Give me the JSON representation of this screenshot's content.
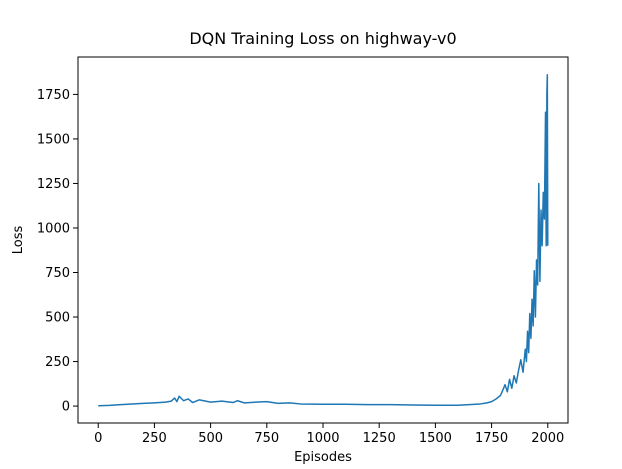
{
  "chart_data": {
    "type": "line",
    "title": "DQN Training Loss on highway-v0",
    "xlabel": "Episodes",
    "ylabel": "Loss",
    "xlim": [
      -90,
      2090
    ],
    "ylim": [
      -95,
      1960
    ],
    "xticks": [
      0,
      250,
      500,
      750,
      1000,
      1250,
      1500,
      1750,
      2000
    ],
    "yticks": [
      0,
      250,
      500,
      750,
      1000,
      1250,
      1500,
      1750
    ],
    "grid": false,
    "legend": "none",
    "line_color": "#1f77b4",
    "series": [
      {
        "x": [
          0,
          50,
          100,
          150,
          200,
          250,
          300,
          325,
          340,
          350,
          360,
          380,
          400,
          420,
          450,
          500,
          550,
          600,
          620,
          650,
          700,
          750,
          800,
          850,
          900,
          1000,
          1100,
          1200,
          1300,
          1400,
          1500,
          1600,
          1650,
          1700,
          1730,
          1750,
          1770,
          1790,
          1800,
          1810,
          1820,
          1830,
          1840,
          1850,
          1860,
          1870,
          1880,
          1890,
          1900,
          1905,
          1910,
          1915,
          1920,
          1925,
          1930,
          1935,
          1940,
          1945,
          1950,
          1955,
          1960,
          1965,
          1970,
          1975,
          1980,
          1985,
          1990,
          1993,
          1996,
          1998,
          2000
        ],
        "values": [
          2,
          4,
          8,
          12,
          15,
          18,
          22,
          28,
          45,
          25,
          55,
          30,
          40,
          20,
          35,
          22,
          28,
          20,
          30,
          18,
          22,
          25,
          15,
          18,
          12,
          10,
          10,
          8,
          8,
          6,
          5,
          5,
          8,
          12,
          18,
          25,
          40,
          60,
          90,
          120,
          80,
          150,
          100,
          170,
          130,
          200,
          260,
          190,
          320,
          250,
          420,
          300,
          520,
          380,
          600,
          450,
          760,
          500,
          820,
          680,
          1250,
          700,
          1100,
          900,
          1200,
          1050,
          1650,
          900,
          1750,
          1860,
          900
        ]
      }
    ]
  }
}
